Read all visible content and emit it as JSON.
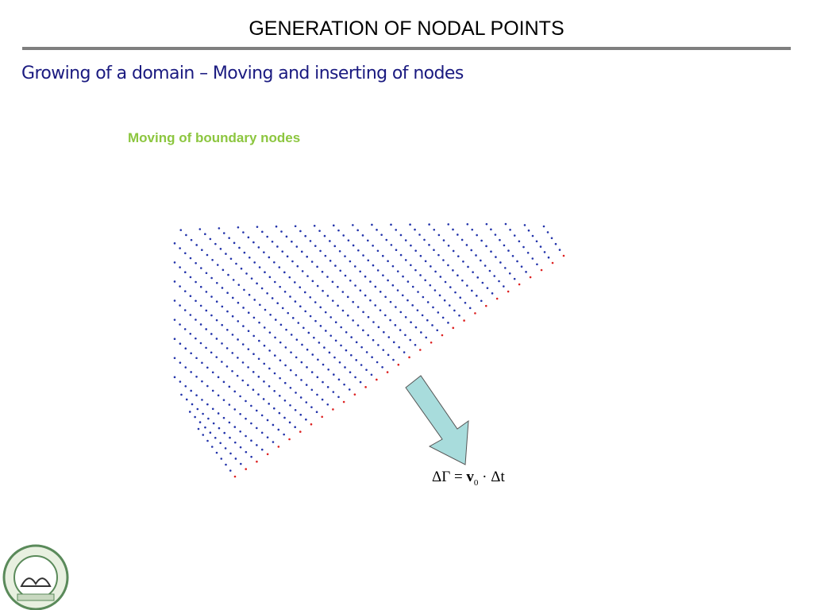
{
  "header": {
    "title": "GENERATION OF NODAL POINTS"
  },
  "subtitle": "Growing of a domain – Moving and inserting of nodes",
  "caption": "Moving of boundary nodes",
  "formula": {
    "left": "ΔΓ =",
    "vector": "v",
    "subscript": "0",
    "right": "· Δt"
  }
}
